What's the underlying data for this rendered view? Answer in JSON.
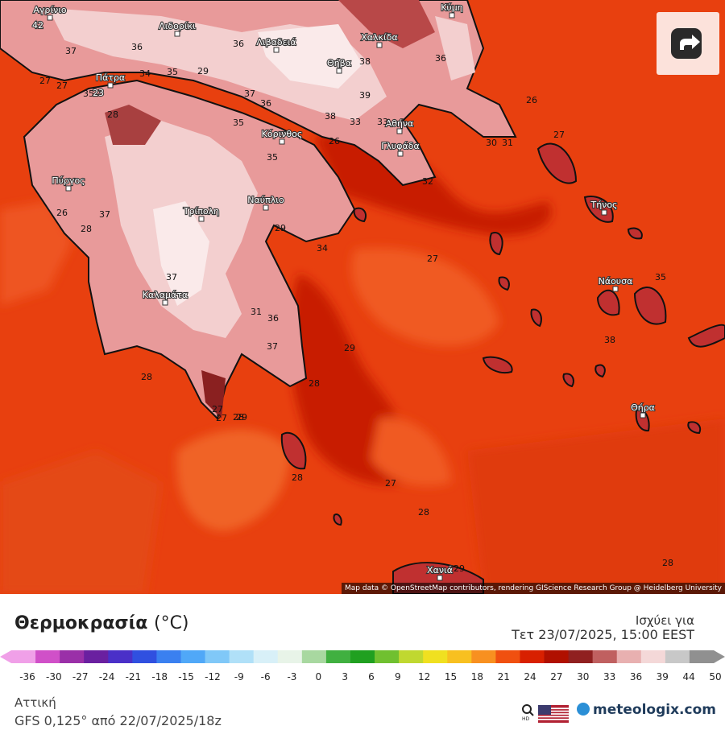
{
  "map": {
    "attribution": "Map data © OpenStreetMap contributors, rendering GIScience Research Group @ Heidelberg University",
    "cities": [
      {
        "name": "Αγρίνιο",
        "temp": "42"
      },
      {
        "name": "Λιδορίκι"
      },
      {
        "name": "Λιβαδειά"
      },
      {
        "name": "Χαλκίδα"
      },
      {
        "name": "Κύμη"
      },
      {
        "name": "Θήβα"
      },
      {
        "name": "Πάτρα",
        "temp": "23"
      },
      {
        "name": "Αθήνα"
      },
      {
        "name": "Γλυφάδα"
      },
      {
        "name": "Κόρινθος"
      },
      {
        "name": "Πύργος"
      },
      {
        "name": "Τρίπολη"
      },
      {
        "name": "Ναύπλιο"
      },
      {
        "name": "Τήνος"
      },
      {
        "name": "Νάουσα"
      },
      {
        "name": "Καλαμάτα"
      },
      {
        "name": "Θήρα"
      },
      {
        "name": "Χανιά"
      }
    ],
    "isotherm_labels": [
      "37",
      "36",
      "36",
      "38",
      "36",
      "27",
      "35",
      "34",
      "35",
      "29",
      "27",
      "26",
      "28",
      "35",
      "36",
      "38",
      "33",
      "33",
      "39",
      "26",
      "27",
      "35",
      "37",
      "32",
      "30",
      "31",
      "34",
      "26",
      "37",
      "29",
      "28",
      "37",
      "31",
      "36",
      "27",
      "35",
      "37",
      "38",
      "27",
      "29",
      "28",
      "28",
      "28",
      "27",
      "29",
      "28",
      "27",
      "28",
      "28",
      "29"
    ]
  },
  "share_icon": "share-icon",
  "legend": {
    "title": "Θερμοκρασία",
    "unit": "(°C)",
    "valid_label": "Ισχύει για",
    "valid_date": "Τετ 23/07/2025, 15:00 EEST",
    "ticks": [
      "-36",
      "-30",
      "-27",
      "-24",
      "-21",
      "-18",
      "-15",
      "-12",
      "-9",
      "-6",
      "-3",
      "0",
      "3",
      "6",
      "9",
      "12",
      "15",
      "18",
      "21",
      "24",
      "27",
      "30",
      "33",
      "36",
      "39",
      "44",
      "50"
    ],
    "colors": [
      "#f0a0e8",
      "#d050c8",
      "#9a30a8",
      "#6a20a0",
      "#4a30c8",
      "#3050e0",
      "#3a80f0",
      "#50a8f8",
      "#80c8f8",
      "#b0e0f8",
      "#d8f0f8",
      "#e8f4e8",
      "#a8d8a0",
      "#40b040",
      "#20a020",
      "#70c030",
      "#c0d830",
      "#f0e020",
      "#f8c020",
      "#f89020",
      "#f05010",
      "#d82000",
      "#b01000",
      "#902020",
      "#c06060",
      "#e8b0b0",
      "#f4d8d8",
      "#c8c8c8",
      "#909090"
    ],
    "region": "Αττική",
    "model": "GFS 0,125° από 22/07/2025/18z",
    "brand": "meteologix.com"
  }
}
